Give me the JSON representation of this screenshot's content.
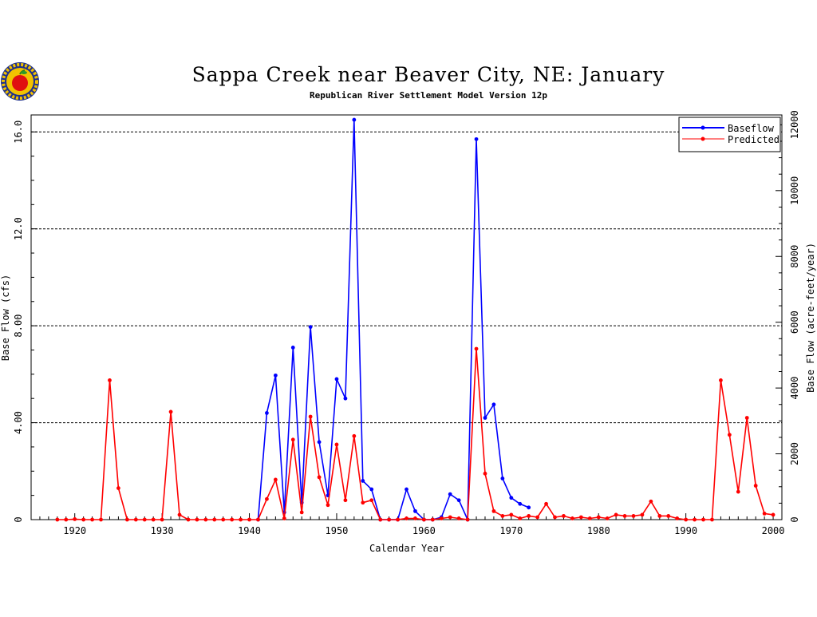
{
  "chart_data": {
    "type": "line",
    "title": "Sappa Creek near Beaver City, NE: January",
    "subtitle": "Republican River Settlement Model Version 12p",
    "xlabel": "Calendar Year",
    "ylabel": "Base Flow (cfs)",
    "y2label": "Base Flow (acre-feet/year)",
    "xlim": [
      1915,
      2001
    ],
    "ylim": [
      0,
      16.7
    ],
    "y2lim": [
      0,
      12300
    ],
    "xticks": [
      "1920",
      "1930",
      "1940",
      "1950",
      "1960",
      "1970",
      "1980",
      "1990",
      "2000"
    ],
    "yticks": [
      "0",
      "4.00",
      "8.00",
      "12.0",
      "16.0"
    ],
    "y2ticks": [
      "0",
      "2000",
      "4000",
      "6000",
      "8000",
      "10000",
      "12000"
    ],
    "grid": "horizontal dashed at y ticks",
    "legend_position": "top-right",
    "colors": {
      "baseflow": "#0000ff",
      "predicted": "#ff0000"
    },
    "series": [
      {
        "name": "Baseflow",
        "x": [
          1941,
          1942,
          1943,
          1944,
          1945,
          1946,
          1947,
          1948,
          1949,
          1950,
          1951,
          1952,
          1953,
          1954,
          1955,
          1956,
          1957,
          1958,
          1959,
          1960,
          1961,
          1962,
          1963,
          1964,
          1965,
          1966,
          1967,
          1968,
          1969,
          1970,
          1971,
          1972
        ],
        "y": [
          0,
          4.4,
          5.95,
          0.3,
          7.1,
          0.7,
          7.95,
          3.2,
          1.0,
          5.8,
          5.0,
          16.5,
          1.6,
          1.25,
          0,
          0,
          0,
          1.25,
          0.35,
          0,
          0,
          0.1,
          1.05,
          0.8,
          0,
          15.7,
          4.2,
          4.75,
          1.7,
          0.9,
          0.65,
          0.5
        ]
      },
      {
        "name": "Predicted",
        "x": [
          1918,
          1919,
          1920,
          1921,
          1922,
          1923,
          1924,
          1925,
          1926,
          1927,
          1928,
          1929,
          1930,
          1931,
          1932,
          1933,
          1934,
          1935,
          1936,
          1937,
          1938,
          1939,
          1940,
          1941,
          1942,
          1943,
          1944,
          1945,
          1946,
          1947,
          1948,
          1949,
          1950,
          1951,
          1952,
          1953,
          1954,
          1955,
          1956,
          1957,
          1958,
          1959,
          1960,
          1961,
          1962,
          1963,
          1964,
          1965,
          1966,
          1967,
          1968,
          1969,
          1970,
          1971,
          1972,
          1973,
          1974,
          1975,
          1976,
          1977,
          1978,
          1979,
          1980,
          1981,
          1982,
          1983,
          1984,
          1985,
          1986,
          1987,
          1988,
          1989,
          1990,
          1991,
          1992,
          1993,
          1994,
          1995,
          1996,
          1997,
          1998,
          1999,
          2000
        ],
        "y": [
          0,
          0,
          0.02,
          0,
          0,
          0,
          5.75,
          1.3,
          0,
          0,
          0,
          0,
          0,
          4.45,
          0.2,
          0,
          0,
          0,
          0,
          0,
          0,
          0,
          0,
          0,
          0.85,
          1.65,
          0.05,
          3.3,
          0.3,
          4.25,
          1.75,
          0.6,
          3.1,
          0.8,
          3.45,
          0.7,
          0.8,
          0,
          0,
          0,
          0.05,
          0.05,
          0,
          0,
          0.05,
          0.1,
          0.05,
          0,
          7.05,
          1.9,
          0.35,
          0.15,
          0.2,
          0.05,
          0.15,
          0.1,
          0.65,
          0.1,
          0.15,
          0.05,
          0.1,
          0.05,
          0.1,
          0.05,
          0.2,
          0.15,
          0.15,
          0.2,
          0.75,
          0.15,
          0.15,
          0.05,
          0,
          0,
          0,
          0,
          5.75,
          3.5,
          1.15,
          4.2,
          1.4,
          0.25,
          0.2
        ]
      }
    ]
  }
}
